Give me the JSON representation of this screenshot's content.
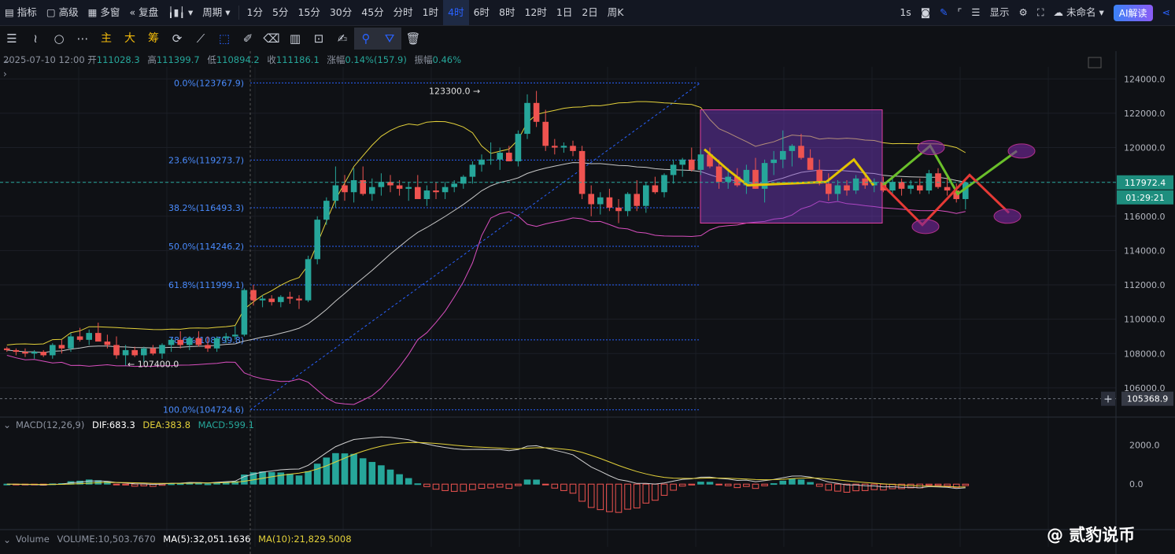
{
  "topbar": {
    "left_items": [
      "指标",
      "高级",
      "多窗",
      "复盘",
      "",
      "周期"
    ],
    "intervals": [
      "1分",
      "5分",
      "15分",
      "30分",
      "45分",
      "分时",
      "1时",
      "4时",
      "6时",
      "8时",
      "12时",
      "1日",
      "2日",
      "周K"
    ],
    "active_interval": "4时",
    "right_items": {
      "speed": "1s",
      "display": "显示",
      "cloud": "未命名",
      "ai": "AI解读"
    }
  },
  "toolbar2": {
    "cn_buttons": [
      "主",
      "大",
      "筹"
    ]
  },
  "info": {
    "date": "2025-07-10 12:00",
    "open_label": "开",
    "open": "111028.3",
    "high_label": "高",
    "high": "111399.7",
    "low_label": "低",
    "low": "110894.2",
    "close_label": "收",
    "close": "111186.1",
    "change_label": "涨幅",
    "change": "0.14%(157.9)",
    "amp_label": "振幅",
    "amp": "0.46%"
  },
  "macd": {
    "name": "MACD(12,26,9)",
    "dif": "DIF:683.3",
    "dea": "DEA:383.8",
    "macd": "MACD:599.1"
  },
  "volume": {
    "name": "Volume",
    "vol": "VOLUME:10,503.7670",
    "ma5": "MA(5):32,051.1636",
    "ma10": "MA(10):21,829.5008"
  },
  "watermark": "@ 贰豹说币",
  "colors": {
    "up": "#26a69a",
    "down": "#ef5350",
    "boll_upper": "#e3d13a",
    "boll_mid": "#c7c7c7",
    "boll_lower": "#d94fbf",
    "fib": "#2962ff",
    "accent": "#2962ff"
  },
  "chart_data": {
    "type": "candlestick",
    "price_axis_ticks": [
      "124000.0",
      "122000.0",
      "120000.0",
      "118000.0",
      "116000.0",
      "114000.0",
      "112000.0",
      "110000.0",
      "108000.0",
      "106000.0"
    ],
    "ylim": [
      104300,
      124700
    ],
    "current_price": "117972.4",
    "countdown": "01:29:21",
    "crosshair_price": "105368.9",
    "fib_levels": [
      {
        "label": "0.0%(123767.9)",
        "price": 123767.9
      },
      {
        "label": "23.6%(119273.7)",
        "price": 119273.7
      },
      {
        "label": "38.2%(116493.3)",
        "price": 116493.3
      },
      {
        "label": "50.0%(114246.2)",
        "price": 114246.2
      },
      {
        "label": "61.8%(111999.1)",
        "price": 111999.1
      },
      {
        "label": "78.6%(108799.8)",
        "price": 108799.8
      },
      {
        "label": "100.0%(104724.6)",
        "price": 104724.6
      }
    ],
    "annotations": [
      {
        "text": "123300.0 →",
        "price": 123300
      },
      {
        "text": "← 107400.0",
        "price": 107400
      }
    ],
    "macd_axis_ticks": [
      "2000.0",
      "0.0"
    ],
    "macd_ylim": [
      -2000,
      2700
    ],
    "candles": [
      [
        108300,
        108400,
        108100,
        108200
      ],
      [
        108200,
        108300,
        107900,
        108100
      ],
      [
        108100,
        108300,
        107800,
        108000
      ],
      [
        108000,
        108200,
        107700,
        108100
      ],
      [
        108100,
        108200,
        107800,
        107900
      ],
      [
        107900,
        108600,
        107700,
        108500
      ],
      [
        108500,
        108800,
        108000,
        108300
      ],
      [
        108300,
        109200,
        108100,
        109000
      ],
      [
        109000,
        109500,
        108700,
        108800
      ],
      [
        108800,
        109400,
        108500,
        109200
      ],
      [
        109200,
        109800,
        108900,
        108700
      ],
      [
        108700,
        109100,
        108300,
        108500
      ],
      [
        108500,
        109000,
        107700,
        107900
      ],
      [
        107900,
        108500,
        107300,
        108200
      ],
      [
        108200,
        108400,
        107800,
        107900
      ],
      [
        107900,
        108400,
        107500,
        108300
      ],
      [
        108300,
        108500,
        107900,
        108000
      ],
      [
        108000,
        108600,
        107700,
        108500
      ],
      [
        108500,
        108900,
        108100,
        108800
      ],
      [
        108800,
        109300,
        108300,
        108500
      ],
      [
        108500,
        109000,
        108200,
        108900
      ],
      [
        108900,
        109300,
        108400,
        108500
      ],
      [
        108500,
        109000,
        108100,
        108300
      ],
      [
        108300,
        109000,
        108100,
        108900
      ],
      [
        108900,
        109200,
        108600,
        109000
      ],
      [
        109000,
        109600,
        108800,
        109100
      ],
      [
        109100,
        111800,
        109000,
        111700
      ],
      [
        111700,
        112000,
        110800,
        111100
      ],
      [
        111100,
        111400,
        110700,
        111200
      ],
      [
        111200,
        111400,
        110800,
        111000
      ],
      [
        111000,
        111400,
        110700,
        111300
      ],
      [
        111300,
        111600,
        110900,
        111200
      ],
      [
        111200,
        111400,
        110600,
        111100
      ],
      [
        111100,
        113700,
        111000,
        113500
      ],
      [
        113500,
        116000,
        113200,
        115800
      ],
      [
        115800,
        117100,
        115500,
        116900
      ],
      [
        116900,
        118900,
        116500,
        117800
      ],
      [
        117800,
        118400,
        116900,
        117400
      ],
      [
        117400,
        118800,
        116800,
        118100
      ],
      [
        118100,
        118900,
        117200,
        117300
      ],
      [
        117300,
        118200,
        116900,
        117700
      ],
      [
        117700,
        118500,
        117200,
        118000
      ],
      [
        118000,
        118400,
        117400,
        117800
      ],
      [
        117800,
        118100,
        117200,
        117600
      ],
      [
        117600,
        118000,
        116900,
        117700
      ],
      [
        117700,
        118400,
        117200,
        117000
      ],
      [
        117000,
        117800,
        116600,
        117500
      ],
      [
        117500,
        118000,
        117000,
        117400
      ],
      [
        117400,
        118000,
        117000,
        117700
      ],
      [
        117700,
        118100,
        117400,
        117900
      ],
      [
        117900,
        118400,
        117600,
        118300
      ],
      [
        118300,
        119200,
        117900,
        119000
      ],
      [
        119000,
        119600,
        118600,
        119300
      ],
      [
        119300,
        120300,
        119000,
        119300
      ],
      [
        119300,
        120000,
        118700,
        119700
      ],
      [
        119700,
        120100,
        119200,
        119200
      ],
      [
        119200,
        121000,
        118900,
        120800
      ],
      [
        120800,
        123100,
        120500,
        122600
      ],
      [
        122600,
        123300,
        121200,
        121500
      ],
      [
        121500,
        122200,
        119800,
        120100
      ],
      [
        120100,
        120500,
        119600,
        120000
      ],
      [
        120000,
        120300,
        119700,
        120100
      ],
      [
        120100,
        120400,
        119500,
        119800
      ],
      [
        119800,
        120100,
        117000,
        117300
      ],
      [
        117300,
        117800,
        116000,
        116700
      ],
      [
        116700,
        117400,
        116100,
        117100
      ],
      [
        117100,
        117600,
        116300,
        116500
      ],
      [
        116500,
        117000,
        115600,
        116300
      ],
      [
        116300,
        117400,
        116000,
        117300
      ],
      [
        117300,
        118100,
        116300,
        116600
      ],
      [
        116600,
        118000,
        116200,
        117800
      ],
      [
        117800,
        118300,
        117300,
        117400
      ],
      [
        117400,
        118500,
        117100,
        118400
      ],
      [
        118400,
        119300,
        117900,
        119000
      ],
      [
        119000,
        119400,
        118300,
        119300
      ],
      [
        119300,
        120000,
        118600,
        118700
      ],
      [
        118700,
        119900,
        118400,
        119600
      ],
      [
        119600,
        120000,
        118800,
        118900
      ],
      [
        118900,
        119300,
        117600,
        118000
      ],
      [
        118000,
        118800,
        117600,
        118300
      ],
      [
        118300,
        118800,
        117700,
        117800
      ],
      [
        117800,
        119000,
        117300,
        118700
      ],
      [
        118700,
        119400,
        117600,
        117600
      ],
      [
        117600,
        119300,
        116800,
        119100
      ],
      [
        119100,
        119800,
        118400,
        119300
      ],
      [
        119300,
        121000,
        118800,
        119800
      ],
      [
        119800,
        120200,
        118900,
        120100
      ],
      [
        120100,
        120800,
        119300,
        119400
      ],
      [
        119400,
        119900,
        118700,
        118700
      ],
      [
        118700,
        119300,
        117800,
        117900
      ],
      [
        117900,
        118500,
        116900,
        117300
      ],
      [
        117300,
        118100,
        116900,
        117800
      ],
      [
        117800,
        118100,
        117200,
        117500
      ],
      [
        117500,
        118400,
        117300,
        118200
      ],
      [
        118200,
        118400,
        117600,
        117800
      ],
      [
        117800,
        118200,
        117400,
        118000
      ],
      [
        118000,
        118300,
        117400,
        117500
      ],
      [
        117500,
        118300,
        117200,
        118000
      ],
      [
        118000,
        118200,
        117200,
        117600
      ],
      [
        117600,
        118100,
        117300,
        117800
      ],
      [
        117800,
        118200,
        117300,
        117500
      ],
      [
        117500,
        118700,
        117300,
        118500
      ],
      [
        118500,
        118800,
        117600,
        117700
      ],
      [
        117700,
        118300,
        117200,
        117500
      ],
      [
        117500,
        117900,
        116800,
        117000
      ],
      [
        117000,
        118000,
        116400,
        117972
      ]
    ],
    "drawings": {
      "box": {
        "price_top": 122200,
        "price_bottom": 115600
      },
      "scenario_up": "green zigzag to ~120100 then ~117200 then ~119800",
      "scenario_down": "red zigzag to ~115500 then ~118400 then ~116200"
    }
  }
}
